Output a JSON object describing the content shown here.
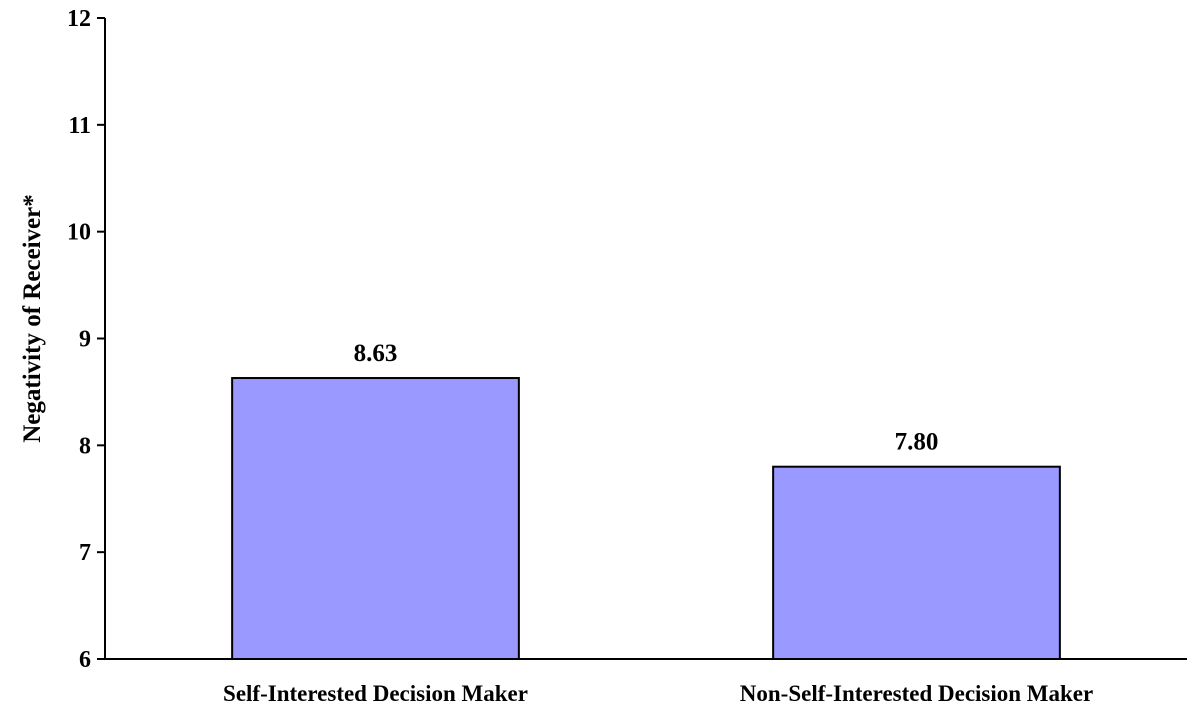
{
  "chart_data": {
    "type": "bar",
    "title": "",
    "xlabel": "",
    "ylabel": "Negativity of Receiver*",
    "ylim": [
      6,
      12
    ],
    "yticks": [
      6,
      7,
      8,
      9,
      10,
      11,
      12
    ],
    "grid": false,
    "categories": [
      "Self-Interested Decision Maker",
      "Non-Self-Interested Decision Maker"
    ],
    "values": [
      8.63,
      7.8
    ],
    "value_labels": [
      "8.63",
      "7.80"
    ],
    "colors": {
      "bar_fill": "#9999ff",
      "bar_stroke": "#000000",
      "axis": "#000000"
    }
  }
}
